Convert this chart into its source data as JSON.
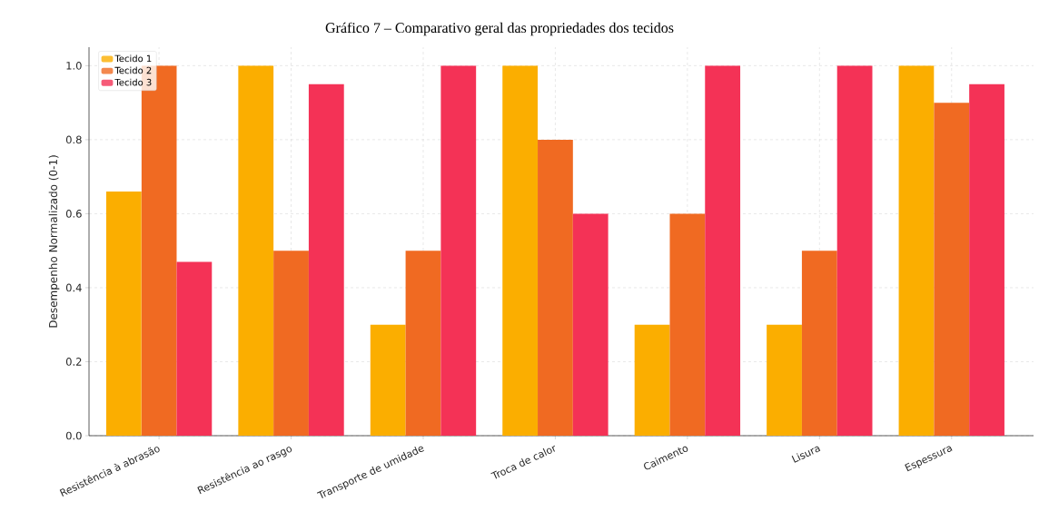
{
  "chart_data": {
    "type": "bar",
    "title": "Gráfico 7 – Comparativo geral das propriedades dos tecidos",
    "ylabel": "Desempenho Normalizado (0-1)",
    "categories": [
      "Resistência à abrasão",
      "Resistência ao rasgo",
      "Transporte de umidade",
      "Troca de calor",
      "Caimento",
      "Lisura",
      "Espessura"
    ],
    "series": [
      {
        "name": "Tecido 1",
        "color": "#fbae00",
        "values": [
          0.66,
          1.0,
          0.3,
          1.0,
          0.3,
          0.3,
          1.0
        ]
      },
      {
        "name": "Tecido 2",
        "color": "#f06a22",
        "values": [
          1.0,
          0.5,
          0.5,
          0.8,
          0.6,
          0.5,
          0.9
        ]
      },
      {
        "name": "Tecido 3",
        "color": "#f43256",
        "values": [
          0.47,
          0.95,
          1.0,
          0.6,
          1.0,
          1.0,
          0.95
        ]
      }
    ],
    "ylim": [
      0,
      1.05
    ],
    "yticks": [
      {
        "value": 0,
        "label": "0.0"
      },
      0.2,
      0.4,
      0.6,
      0.8,
      {
        "value": 1,
        "label": "1.0"
      }
    ],
    "grid": true,
    "legend": "top left"
  }
}
